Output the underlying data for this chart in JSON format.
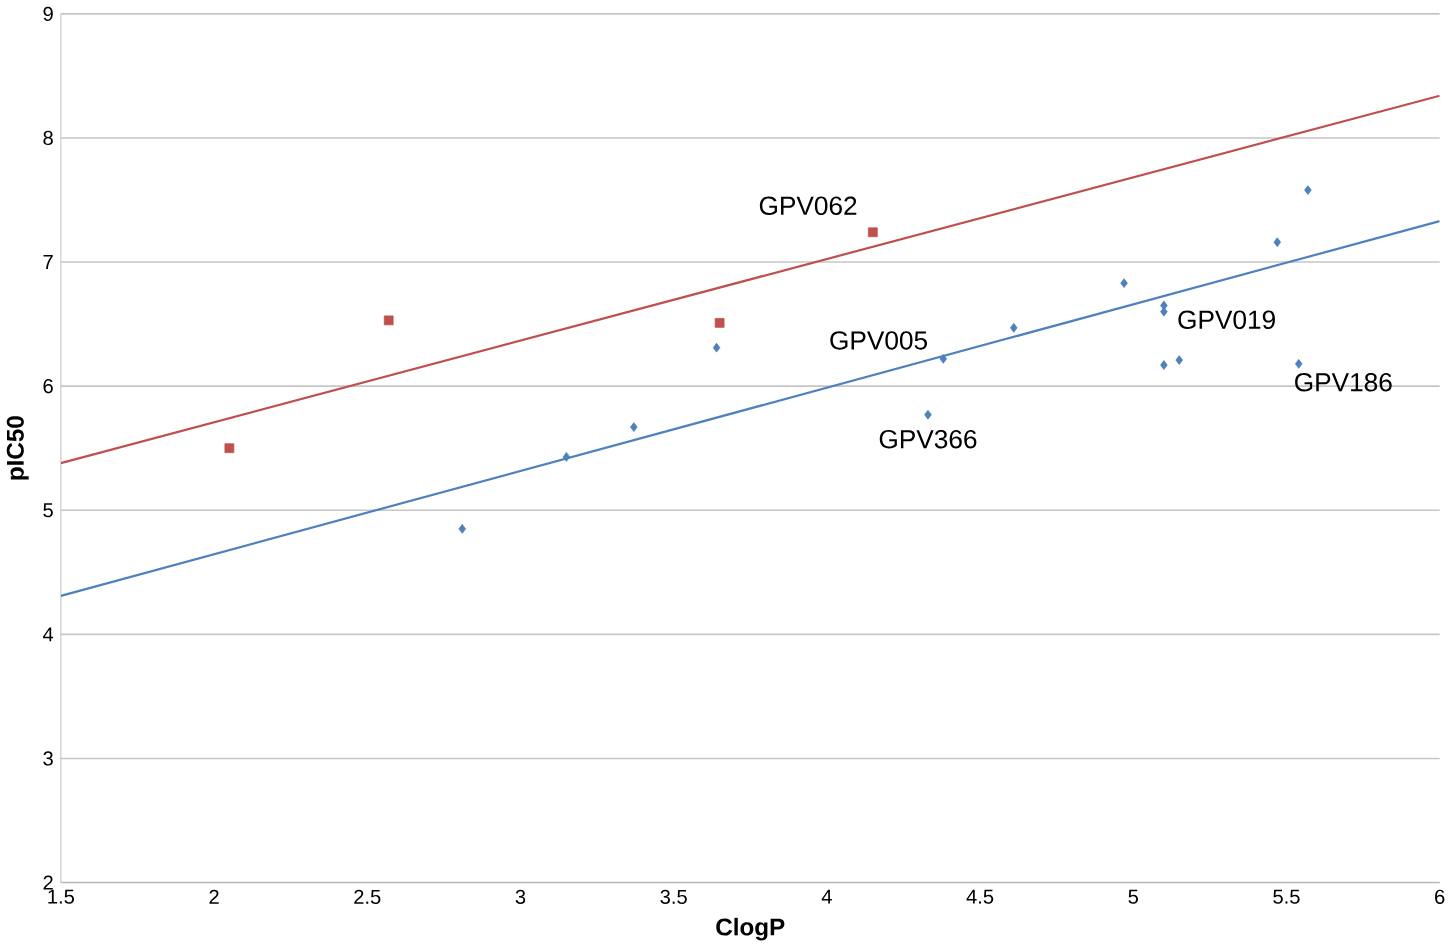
{
  "chart_data": {
    "type": "scatter",
    "xlabel": "ClogP",
    "ylabel": "pIC50",
    "xlim": [
      1.5,
      6
    ],
    "ylim": [
      2,
      9
    ],
    "xticks": [
      1.5,
      2,
      2.5,
      3,
      3.5,
      4,
      4.5,
      5,
      5.5,
      6
    ],
    "yticks": [
      2,
      3,
      4,
      5,
      6,
      7,
      8,
      9
    ],
    "grid": "y",
    "series": [
      {
        "marker": "square",
        "color": "#c0504d",
        "x": [
          2.05,
          2.57,
          3.65,
          4.15
        ],
        "values": [
          5.5,
          6.53,
          6.51,
          7.24
        ]
      },
      {
        "marker": "diamond",
        "color": "#4f81bd",
        "x": [
          2.81,
          3.15,
          3.37,
          3.64,
          4.33,
          4.38,
          4.61,
          4.97,
          5.1,
          5.1,
          5.1,
          5.15,
          5.47,
          5.54,
          5.57
        ],
        "values": [
          4.85,
          5.43,
          5.67,
          6.31,
          5.77,
          6.22,
          6.47,
          6.83,
          6.65,
          6.6,
          6.17,
          6.21,
          7.16,
          6.18,
          7.58
        ]
      },
      {
        "type": "line",
        "marker": "none",
        "color": "#c0504d",
        "x": [
          1.5,
          6
        ],
        "values": [
          5.38,
          8.34
        ]
      },
      {
        "type": "line",
        "marker": "none",
        "color": "#4f81bd",
        "x": [
          1.5,
          6
        ],
        "values": [
          4.31,
          7.33
        ]
      }
    ],
    "annotations": [
      {
        "text": "GPV062",
        "x": 4.15,
        "y": 7.24
      },
      {
        "text": "GPV005",
        "x": 4.38,
        "y": 6.22
      },
      {
        "text": "GPV019",
        "x": 5.1,
        "y": 6.6
      },
      {
        "text": "GPV186",
        "x": 5.54,
        "y": 6.18
      },
      {
        "text": "GPV366",
        "x": 4.33,
        "y": 5.77
      }
    ]
  }
}
